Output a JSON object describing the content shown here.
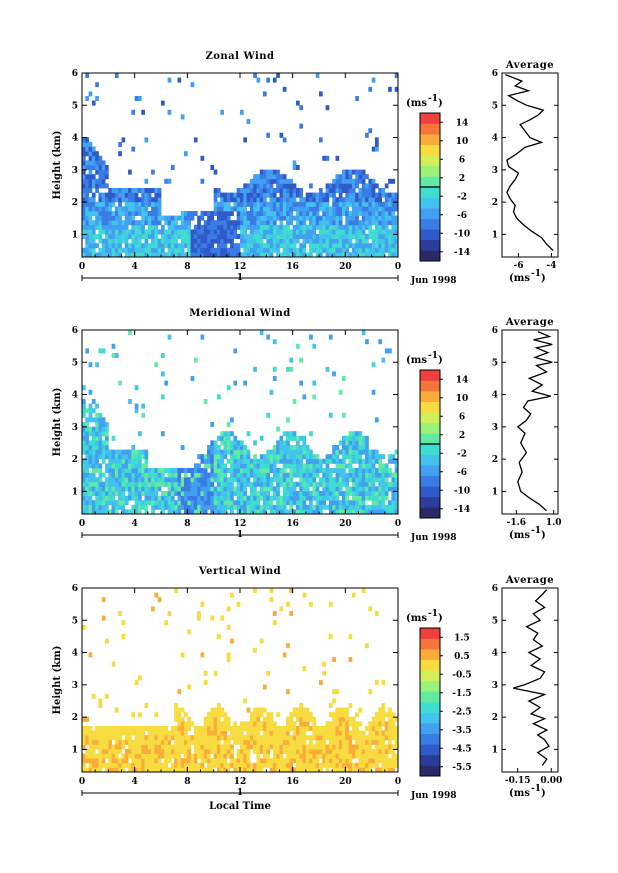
{
  "panels": [
    {
      "title": "Zonal Wind",
      "ylabel": "Height (km)",
      "yticks": [
        "1",
        "2",
        "3",
        "4",
        "5",
        "6"
      ],
      "xticks": [
        "0",
        "4",
        "8",
        "12",
        "16",
        "20",
        "0"
      ],
      "day_label": "1",
      "date_label": "Jun 1998",
      "unit": "(ms",
      "unit_sup": "-1",
      "colorbar_ticks": [
        "14",
        "10",
        "6",
        "2",
        "-2",
        "-6",
        "-10",
        "-14"
      ],
      "avg_title": "Average",
      "avg_xticks": [
        "-6",
        "-4"
      ],
      "avg_unit": "(ms",
      "avg_unit_sup": "-1"
    },
    {
      "title": "Meridional Wind",
      "ylabel": "Height (km)",
      "yticks": [
        "1",
        "2",
        "3",
        "4",
        "5",
        "6"
      ],
      "xticks": [
        "0",
        "4",
        "8",
        "12",
        "16",
        "20",
        "0"
      ],
      "day_label": "1",
      "date_label": "Jun 1998",
      "unit": "(ms",
      "unit_sup": "-1",
      "colorbar_ticks": [
        "14",
        "10",
        "6",
        "2",
        "-2",
        "-6",
        "-10",
        "-14"
      ],
      "avg_title": "Average",
      "avg_xticks": [
        "-1.6",
        "1.0"
      ],
      "avg_unit": "(ms",
      "avg_unit_sup": "-1"
    },
    {
      "title": "Vertical Wind",
      "ylabel": "Height (km)",
      "yticks": [
        "1",
        "2",
        "3",
        "4",
        "5",
        "6"
      ],
      "xticks": [
        "0",
        "4",
        "8",
        "12",
        "16",
        "20",
        "0"
      ],
      "day_label": "1",
      "date_label": "Jun 1998",
      "unit": "(ms",
      "unit_sup": "-1",
      "colorbar_ticks": [
        "1.5",
        "0.5",
        "-0.5",
        "-1.5",
        "-2.5",
        "-3.5",
        "-4.5",
        "-5.5"
      ],
      "avg_title": "Average",
      "avg_xticks": [
        "-0.15",
        "0.00"
      ],
      "avg_unit": "(ms",
      "avg_unit_sup": "-1",
      "xlabel": "Local Time"
    }
  ],
  "colorbar_colors": [
    "#2a2a6a",
    "#2c3c9a",
    "#2f5ac8",
    "#3a7ce6",
    "#41a0f0",
    "#44c2ee",
    "#3fdcd0",
    "#62eaa4",
    "#9af27a",
    "#d2ee58",
    "#f6dc40",
    "#faac3a",
    "#f6743a",
    "#ee4040"
  ],
  "chart_data": [
    {
      "type": "heatmap",
      "title": "Zonal Wind",
      "xlabel": "",
      "ylabel": "Height (km)",
      "xlim": [
        0,
        24
      ],
      "ylim": [
        0.3,
        6
      ],
      "x_unit": "Local Time (h), 1 Jun 1998",
      "colorbar_range": [
        -16,
        16
      ],
      "colorbar_ticks": [
        14,
        10,
        6,
        2,
        -2,
        -6,
        -10,
        -14
      ],
      "zero_contour": true,
      "profile": {
        "title": "Average",
        "xlim": [
          -7,
          -3.6
        ],
        "xticks": [
          -6,
          -4
        ],
        "points": [
          [
            -3.9,
            0.5
          ],
          [
            -4.3,
            0.7
          ],
          [
            -4.6,
            0.9
          ],
          [
            -5.2,
            1.1
          ],
          [
            -5.7,
            1.3
          ],
          [
            -6.1,
            1.5
          ],
          [
            -6.3,
            1.7
          ],
          [
            -6.2,
            1.9
          ],
          [
            -6.5,
            2.1
          ],
          [
            -6.7,
            2.3
          ],
          [
            -6.5,
            2.5
          ],
          [
            -6.2,
            2.7
          ],
          [
            -6.0,
            2.9
          ],
          [
            -6.6,
            3.1
          ],
          [
            -6.7,
            3.3
          ],
          [
            -6.1,
            3.5
          ],
          [
            -5.6,
            3.7
          ],
          [
            -4.6,
            3.85
          ],
          [
            -5.3,
            4.0
          ],
          [
            -5.6,
            4.2
          ],
          [
            -5.9,
            4.4
          ],
          [
            -5.3,
            4.55
          ],
          [
            -4.8,
            4.7
          ],
          [
            -4.5,
            4.85
          ],
          [
            -5.5,
            5.0
          ],
          [
            -6.1,
            5.15
          ],
          [
            -6.6,
            5.3
          ],
          [
            -5.4,
            5.45
          ],
          [
            -6.2,
            5.6
          ],
          [
            -5.8,
            5.75
          ],
          [
            -6.3,
            5.85
          ],
          [
            -6.8,
            5.95
          ]
        ]
      }
    },
    {
      "type": "heatmap",
      "title": "Meridional Wind",
      "xlabel": "",
      "ylabel": "Height (km)",
      "xlim": [
        0,
        24
      ],
      "ylim": [
        0.3,
        6
      ],
      "x_unit": "Local Time (h), 1 Jun 1998",
      "colorbar_range": [
        -16,
        16
      ],
      "colorbar_ticks": [
        14,
        10,
        6,
        2,
        -2,
        -6,
        -10,
        -14
      ],
      "zero_contour": true,
      "profile": {
        "title": "Average",
        "xlim": [
          -2.6,
          1.3
        ],
        "xticks": [
          -1.6,
          1.0
        ],
        "points": [
          [
            0.5,
            0.4
          ],
          [
            0.0,
            0.6
          ],
          [
            -0.7,
            0.8
          ],
          [
            -1.3,
            1.0
          ],
          [
            -1.5,
            1.3
          ],
          [
            -1.2,
            1.6
          ],
          [
            -1.4,
            1.9
          ],
          [
            -0.9,
            2.2
          ],
          [
            -1.3,
            2.5
          ],
          [
            -1.0,
            2.8
          ],
          [
            -1.5,
            3.0
          ],
          [
            -0.9,
            3.2
          ],
          [
            -0.6,
            3.4
          ],
          [
            -1.1,
            3.6
          ],
          [
            -0.8,
            3.8
          ],
          [
            0.8,
            3.95
          ],
          [
            -0.5,
            4.1
          ],
          [
            0.2,
            4.3
          ],
          [
            -0.7,
            4.5
          ],
          [
            0.5,
            4.7
          ],
          [
            -0.2,
            4.9
          ],
          [
            0.9,
            5.0
          ],
          [
            -0.3,
            5.15
          ],
          [
            0.6,
            5.3
          ],
          [
            -0.2,
            5.45
          ],
          [
            0.9,
            5.55
          ],
          [
            -0.4,
            5.7
          ],
          [
            0.7,
            5.8
          ],
          [
            -0.1,
            5.95
          ]
        ]
      }
    },
    {
      "type": "heatmap",
      "title": "Vertical Wind",
      "xlabel": "Local Time",
      "ylabel": "Height (km)",
      "xlim": [
        0,
        24
      ],
      "ylim": [
        0.3,
        6
      ],
      "x_unit": "Local Time (h), 1 Jun 1998",
      "colorbar_range": [
        -6.0,
        2.0
      ],
      "colorbar_ticks": [
        1.5,
        0.5,
        -0.5,
        -1.5,
        -2.5,
        -3.5,
        -4.5,
        -5.5
      ],
      "zero_contour": false,
      "profile": {
        "title": "Average",
        "xlim": [
          -0.22,
          0.03
        ],
        "xticks": [
          -0.15,
          0.0
        ],
        "points": [
          [
            -0.04,
            0.5
          ],
          [
            -0.02,
            0.7
          ],
          [
            -0.06,
            0.9
          ],
          [
            -0.01,
            1.1
          ],
          [
            -0.03,
            1.3
          ],
          [
            -0.06,
            1.45
          ],
          [
            -0.02,
            1.6
          ],
          [
            -0.08,
            1.8
          ],
          [
            -0.03,
            1.95
          ],
          [
            -0.09,
            2.1
          ],
          [
            -0.05,
            2.3
          ],
          [
            -0.1,
            2.5
          ],
          [
            -0.03,
            2.7
          ],
          [
            -0.17,
            2.9
          ],
          [
            -0.12,
            3.0
          ],
          [
            -0.05,
            3.2
          ],
          [
            -0.03,
            3.4
          ],
          [
            -0.09,
            3.6
          ],
          [
            -0.05,
            3.8
          ],
          [
            -0.1,
            4.0
          ],
          [
            -0.04,
            4.2
          ],
          [
            -0.08,
            4.4
          ],
          [
            -0.06,
            4.6
          ],
          [
            -0.11,
            4.8
          ],
          [
            -0.05,
            5.0
          ],
          [
            -0.08,
            5.2
          ],
          [
            -0.03,
            5.4
          ],
          [
            -0.07,
            5.6
          ],
          [
            -0.04,
            5.8
          ],
          [
            -0.02,
            5.95
          ]
        ]
      }
    }
  ]
}
